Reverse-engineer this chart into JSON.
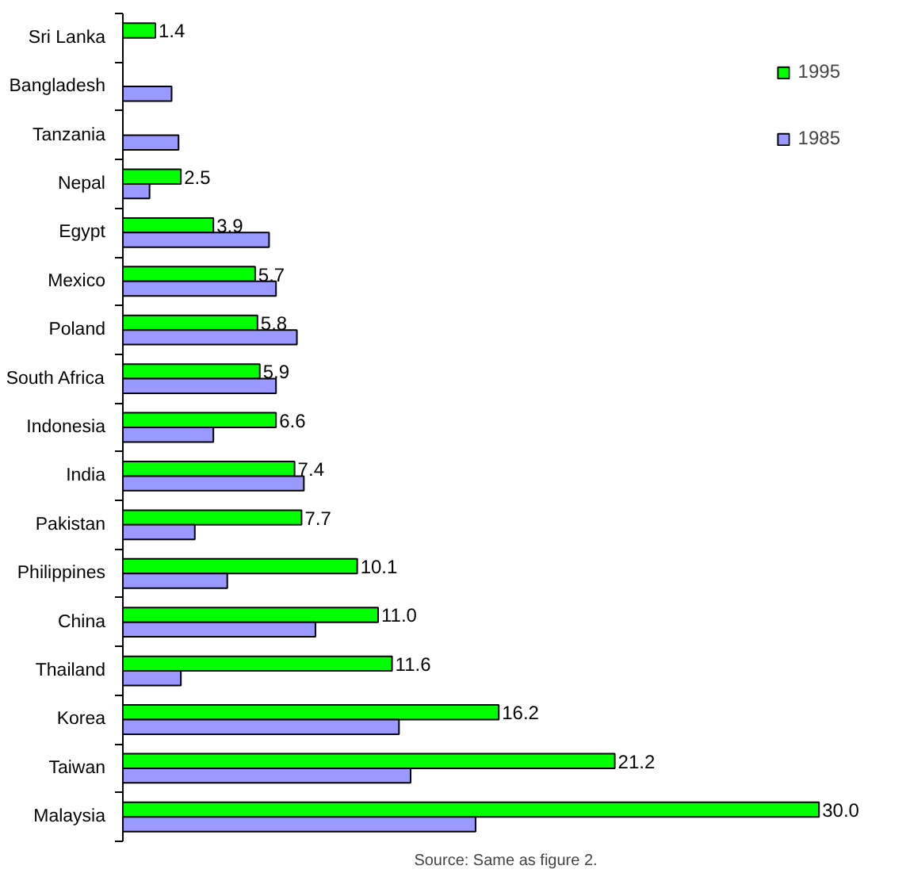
{
  "chart_data": {
    "type": "bar",
    "orientation": "horizontal",
    "categories": [
      "Sri Lanka",
      "Bangladesh",
      "Tanzania",
      "Nepal",
      "Egypt",
      "Mexico",
      "Poland",
      "South Africa",
      "Indonesia",
      "India",
      "Pakistan",
      "Philippines",
      "China",
      "Thailand",
      "Korea",
      "Taiwan",
      "Malaysia"
    ],
    "series": [
      {
        "name": "1995",
        "color": "#00ff00",
        "values": [
          1.4,
          null,
          null,
          2.5,
          3.9,
          5.7,
          5.8,
          5.9,
          6.6,
          7.4,
          7.7,
          10.1,
          11.0,
          11.6,
          16.2,
          21.2,
          30.0
        ],
        "value_labels": [
          "1.4",
          null,
          null,
          "2.5",
          "3.9",
          "5.7",
          "5.8",
          "5.9",
          "6.6",
          "7.4",
          "7.7",
          "10.1",
          "11.0",
          "11.6",
          "16.2",
          "21.2",
          "30.0"
        ]
      },
      {
        "name": "1985",
        "color": "#9999ff",
        "values": [
          null,
          2.1,
          2.4,
          1.15,
          6.3,
          6.6,
          7.5,
          6.6,
          3.9,
          7.8,
          3.1,
          4.5,
          8.3,
          2.5,
          11.9,
          12.4,
          15.2
        ]
      }
    ],
    "legend": "top right",
    "grid": false,
    "annotations": [
      "Source: Same as figure 2."
    ]
  }
}
